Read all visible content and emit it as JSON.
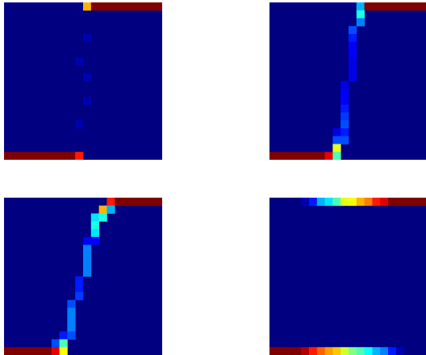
{
  "chart_data": [
    {
      "type": "heatmap",
      "grid": [
        20,
        20
      ],
      "background_value": 0.0,
      "cells": [
        {
          "row": 0,
          "col": 10,
          "v": 0.7
        },
        {
          "row": 0,
          "col": 11,
          "v": 1.0
        },
        {
          "row": 0,
          "col": 12,
          "v": 1.0
        },
        {
          "row": 0,
          "col": 13,
          "v": 1.0
        },
        {
          "row": 0,
          "col": 14,
          "v": 1.0
        },
        {
          "row": 0,
          "col": 15,
          "v": 1.0
        },
        {
          "row": 0,
          "col": 16,
          "v": 1.0
        },
        {
          "row": 0,
          "col": 17,
          "v": 1.0
        },
        {
          "row": 0,
          "col": 18,
          "v": 1.0
        },
        {
          "row": 0,
          "col": 19,
          "v": 1.0
        },
        {
          "row": 4,
          "col": 10,
          "v": 0.05
        },
        {
          "row": 7,
          "col": 9,
          "v": 0.05
        },
        {
          "row": 9,
          "col": 10,
          "v": 0.05
        },
        {
          "row": 12,
          "col": 10,
          "v": 0.05
        },
        {
          "row": 15,
          "col": 9,
          "v": 0.05
        },
        {
          "row": 19,
          "col": 0,
          "v": 1.0
        },
        {
          "row": 19,
          "col": 1,
          "v": 1.0
        },
        {
          "row": 19,
          "col": 2,
          "v": 1.0
        },
        {
          "row": 19,
          "col": 3,
          "v": 1.0
        },
        {
          "row": 19,
          "col": 4,
          "v": 1.0
        },
        {
          "row": 19,
          "col": 5,
          "v": 1.0
        },
        {
          "row": 19,
          "col": 6,
          "v": 1.0
        },
        {
          "row": 19,
          "col": 7,
          "v": 1.0
        },
        {
          "row": 19,
          "col": 8,
          "v": 1.0
        },
        {
          "row": 19,
          "col": 9,
          "v": 0.85
        }
      ]
    },
    {
      "type": "heatmap",
      "grid": [
        20,
        20
      ],
      "background_value": 0.0,
      "cells": [
        {
          "row": 0,
          "col": 11,
          "v": 0.3
        },
        {
          "row": 0,
          "col": 12,
          "v": 1.0
        },
        {
          "row": 0,
          "col": 13,
          "v": 1.0
        },
        {
          "row": 0,
          "col": 14,
          "v": 1.0
        },
        {
          "row": 0,
          "col": 15,
          "v": 1.0
        },
        {
          "row": 0,
          "col": 16,
          "v": 1.0
        },
        {
          "row": 0,
          "col": 17,
          "v": 1.0
        },
        {
          "row": 0,
          "col": 18,
          "v": 1.0
        },
        {
          "row": 0,
          "col": 19,
          "v": 1.0
        },
        {
          "row": 1,
          "col": 11,
          "v": 0.4
        },
        {
          "row": 2,
          "col": 11,
          "v": 0.25
        },
        {
          "row": 3,
          "col": 10,
          "v": 0.2
        },
        {
          "row": 4,
          "col": 10,
          "v": 0.15
        },
        {
          "row": 5,
          "col": 10,
          "v": 0.12
        },
        {
          "row": 6,
          "col": 10,
          "v": 0.12
        },
        {
          "row": 7,
          "col": 10,
          "v": 0.1
        },
        {
          "row": 8,
          "col": 10,
          "v": 0.1
        },
        {
          "row": 9,
          "col": 10,
          "v": 0.1
        },
        {
          "row": 10,
          "col": 9,
          "v": 0.1
        },
        {
          "row": 11,
          "col": 9,
          "v": 0.12
        },
        {
          "row": 12,
          "col": 9,
          "v": 0.12
        },
        {
          "row": 13,
          "col": 9,
          "v": 0.15
        },
        {
          "row": 14,
          "col": 9,
          "v": 0.18
        },
        {
          "row": 15,
          "col": 9,
          "v": 0.2
        },
        {
          "row": 16,
          "col": 8,
          "v": 0.1
        },
        {
          "row": 16,
          "col": 9,
          "v": 0.15
        },
        {
          "row": 17,
          "col": 8,
          "v": 0.2
        },
        {
          "row": 17,
          "col": 9,
          "v": 0.2
        },
        {
          "row": 18,
          "col": 8,
          "v": 0.6
        },
        {
          "row": 19,
          "col": 0,
          "v": 1.0
        },
        {
          "row": 19,
          "col": 1,
          "v": 1.0
        },
        {
          "row": 19,
          "col": 2,
          "v": 1.0
        },
        {
          "row": 19,
          "col": 3,
          "v": 1.0
        },
        {
          "row": 19,
          "col": 4,
          "v": 1.0
        },
        {
          "row": 19,
          "col": 5,
          "v": 1.0
        },
        {
          "row": 19,
          "col": 6,
          "v": 1.0
        },
        {
          "row": 19,
          "col": 7,
          "v": 0.9
        },
        {
          "row": 19,
          "col": 8,
          "v": 0.45
        }
      ]
    },
    {
      "type": "heatmap",
      "grid": [
        20,
        20
      ],
      "background_value": 0.0,
      "cells": [
        {
          "row": 0,
          "col": 13,
          "v": 0.85
        },
        {
          "row": 0,
          "col": 14,
          "v": 1.0
        },
        {
          "row": 0,
          "col": 15,
          "v": 1.0
        },
        {
          "row": 0,
          "col": 16,
          "v": 1.0
        },
        {
          "row": 0,
          "col": 17,
          "v": 1.0
        },
        {
          "row": 0,
          "col": 18,
          "v": 1.0
        },
        {
          "row": 0,
          "col": 19,
          "v": 1.0
        },
        {
          "row": 1,
          "col": 12,
          "v": 0.7
        },
        {
          "row": 1,
          "col": 13,
          "v": 0.3
        },
        {
          "row": 2,
          "col": 11,
          "v": 0.35
        },
        {
          "row": 2,
          "col": 12,
          "v": 0.4
        },
        {
          "row": 3,
          "col": 11,
          "v": 0.4
        },
        {
          "row": 4,
          "col": 11,
          "v": 0.35
        },
        {
          "row": 5,
          "col": 10,
          "v": 0.12
        },
        {
          "row": 5,
          "col": 11,
          "v": 0.12
        },
        {
          "row": 6,
          "col": 10,
          "v": 0.25
        },
        {
          "row": 7,
          "col": 10,
          "v": 0.25
        },
        {
          "row": 8,
          "col": 10,
          "v": 0.25
        },
        {
          "row": 9,
          "col": 10,
          "v": 0.25
        },
        {
          "row": 10,
          "col": 9,
          "v": 0.15
        },
        {
          "row": 11,
          "col": 9,
          "v": 0.15
        },
        {
          "row": 12,
          "col": 9,
          "v": 0.18
        },
        {
          "row": 13,
          "col": 8,
          "v": 0.2
        },
        {
          "row": 14,
          "col": 8,
          "v": 0.25
        },
        {
          "row": 15,
          "col": 8,
          "v": 0.25
        },
        {
          "row": 16,
          "col": 8,
          "v": 0.25
        },
        {
          "row": 17,
          "col": 7,
          "v": 0.15
        },
        {
          "row": 17,
          "col": 8,
          "v": 0.2
        },
        {
          "row": 18,
          "col": 6,
          "v": 0.2
        },
        {
          "row": 18,
          "col": 7,
          "v": 0.45
        },
        {
          "row": 19,
          "col": 0,
          "v": 1.0
        },
        {
          "row": 19,
          "col": 1,
          "v": 1.0
        },
        {
          "row": 19,
          "col": 2,
          "v": 1.0
        },
        {
          "row": 19,
          "col": 3,
          "v": 1.0
        },
        {
          "row": 19,
          "col": 4,
          "v": 1.0
        },
        {
          "row": 19,
          "col": 5,
          "v": 1.0
        },
        {
          "row": 19,
          "col": 6,
          "v": 0.9
        },
        {
          "row": 19,
          "col": 7,
          "v": 0.62
        }
      ]
    },
    {
      "type": "heatmap",
      "grid": [
        20,
        20
      ],
      "background_value": 0.0,
      "cells": [
        {
          "row": 0,
          "col": 4,
          "v": 0.05
        },
        {
          "row": 0,
          "col": 5,
          "v": 0.15
        },
        {
          "row": 0,
          "col": 6,
          "v": 0.3
        },
        {
          "row": 0,
          "col": 7,
          "v": 0.35
        },
        {
          "row": 0,
          "col": 8,
          "v": 0.45
        },
        {
          "row": 0,
          "col": 9,
          "v": 0.6
        },
        {
          "row": 0,
          "col": 10,
          "v": 0.62
        },
        {
          "row": 0,
          "col": 11,
          "v": 0.7
        },
        {
          "row": 0,
          "col": 12,
          "v": 0.75
        },
        {
          "row": 0,
          "col": 13,
          "v": 0.85
        },
        {
          "row": 0,
          "col": 14,
          "v": 0.9
        },
        {
          "row": 0,
          "col": 15,
          "v": 1.0
        },
        {
          "row": 0,
          "col": 16,
          "v": 1.0
        },
        {
          "row": 0,
          "col": 17,
          "v": 1.0
        },
        {
          "row": 0,
          "col": 18,
          "v": 1.0
        },
        {
          "row": 0,
          "col": 19,
          "v": 1.0
        },
        {
          "row": 19,
          "col": 0,
          "v": 1.0
        },
        {
          "row": 19,
          "col": 1,
          "v": 1.0
        },
        {
          "row": 19,
          "col": 2,
          "v": 1.0
        },
        {
          "row": 19,
          "col": 3,
          "v": 1.0
        },
        {
          "row": 19,
          "col": 4,
          "v": 0.95
        },
        {
          "row": 19,
          "col": 5,
          "v": 0.85
        },
        {
          "row": 19,
          "col": 6,
          "v": 0.78
        },
        {
          "row": 19,
          "col": 7,
          "v": 0.72
        },
        {
          "row": 19,
          "col": 8,
          "v": 0.68
        },
        {
          "row": 19,
          "col": 9,
          "v": 0.58
        },
        {
          "row": 19,
          "col": 10,
          "v": 0.5
        },
        {
          "row": 19,
          "col": 11,
          "v": 0.45
        },
        {
          "row": 19,
          "col": 12,
          "v": 0.38
        },
        {
          "row": 19,
          "col": 13,
          "v": 0.3
        },
        {
          "row": 19,
          "col": 14,
          "v": 0.25
        },
        {
          "row": 19,
          "col": 15,
          "v": 0.15
        },
        {
          "row": 19,
          "col": 16,
          "v": 0.05
        }
      ]
    }
  ],
  "colormap": "jet"
}
